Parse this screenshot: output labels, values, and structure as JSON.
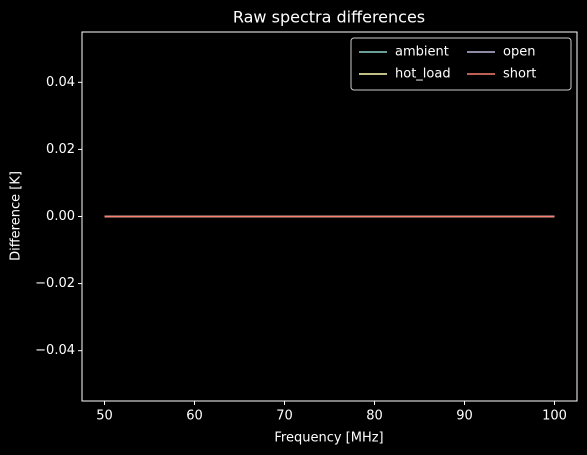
{
  "chart_data": {
    "type": "line",
    "title": "Raw spectra differences",
    "x_label": "Frequency [MHz]",
    "y_label": "Difference [K]",
    "x": [
      50,
      60,
      70,
      80,
      90,
      100
    ],
    "series": [
      {
        "name": "ambient",
        "color": "#8dd3c7",
        "values": [
          0,
          0,
          0,
          0,
          0,
          0
        ]
      },
      {
        "name": "hot_load",
        "color": "#ffffb3",
        "values": [
          0,
          0,
          0,
          0,
          0,
          0
        ]
      },
      {
        "name": "open",
        "color": "#bebada",
        "values": [
          0,
          0,
          0,
          0,
          0,
          0
        ]
      },
      {
        "name": "short",
        "color": "#fb8072",
        "values": [
          0,
          0,
          0,
          0,
          0,
          0
        ]
      }
    ],
    "xlim": [
      47.5,
      102.5
    ],
    "xticks": [
      50,
      60,
      70,
      80,
      90,
      100
    ],
    "ylim": [
      -0.055,
      0.055
    ],
    "yticks": [
      {
        "value": -0.04,
        "label": "−0.04"
      },
      {
        "value": -0.02,
        "label": "−0.02"
      },
      {
        "value": 0,
        "label": "0.00"
      },
      {
        "value": 0.02,
        "label": "0.02"
      },
      {
        "value": 0.04,
        "label": "0.04"
      }
    ],
    "legend": "upper right",
    "legend_columns": 2,
    "background": "#000000"
  }
}
